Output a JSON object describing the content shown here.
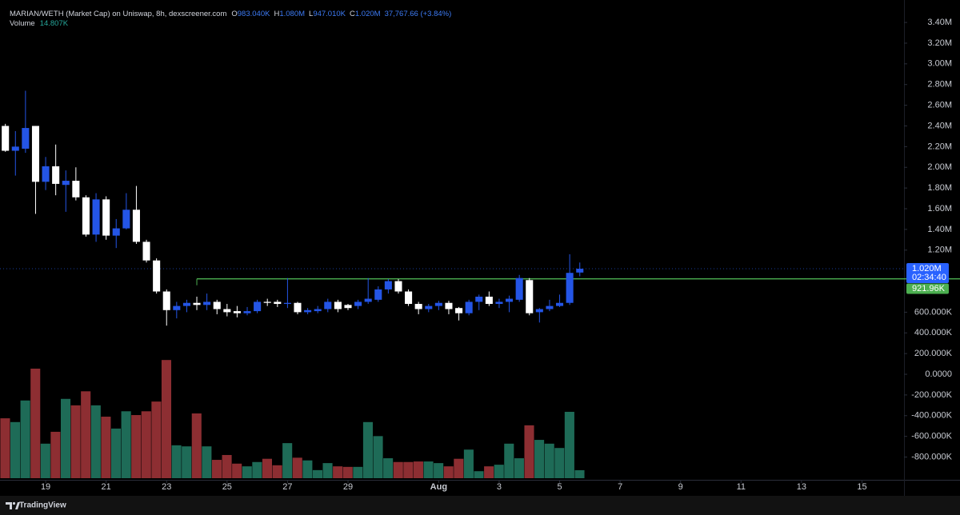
{
  "chart_data": {
    "type": "candlestick",
    "title": "MARIAN/WETH (Market Cap) on Uniswap, 8h, dexscreener.com",
    "ohlc_legend": [
      {
        "key": "O",
        "value": "983.040K"
      },
      {
        "key": "H",
        "value": "1.080M"
      },
      {
        "key": "L",
        "value": "947.010K"
      },
      {
        "key": "C",
        "value": "1.020M"
      }
    ],
    "change_label": "37,767.66 (+3.84%)",
    "volume_label": "Volume",
    "volume_value_label": "14.807K",
    "x": [
      17.667,
      18,
      18.333,
      18.667,
      19,
      19.333,
      19.667,
      20,
      20.333,
      20.667,
      21,
      21.333,
      21.667,
      22,
      22.333,
      22.667,
      23,
      23.333,
      23.667,
      24,
      24.333,
      24.667,
      25,
      25.333,
      25.667,
      26,
      26.333,
      26.667,
      27,
      27.333,
      27.667,
      28,
      28.333,
      28.667,
      29,
      29.333,
      29.667,
      30,
      30.333,
      30.667,
      31,
      31.333,
      31.667,
      32,
      32.333,
      32.667,
      33,
      33.333,
      33.667,
      34,
      34.333,
      34.667,
      35,
      35.333,
      35.667,
      36,
      36.333,
      36.667
    ],
    "open": [
      2400000,
      2160000,
      2180000,
      2400000,
      1860000,
      2010000,
      1830000,
      1870000,
      1710000,
      1350000,
      1690000,
      1340000,
      1410000,
      1590000,
      1280000,
      1100000,
      800000,
      620000,
      660000,
      690000,
      670000,
      700000,
      630000,
      610000,
      590000,
      610000,
      700000,
      700000,
      680000,
      690000,
      600000,
      610000,
      630000,
      700000,
      670000,
      660000,
      700000,
      720000,
      820000,
      900000,
      800000,
      680000,
      630000,
      660000,
      690000,
      640000,
      590000,
      700000,
      750000,
      680000,
      700000,
      720000,
      910000,
      600000,
      630000,
      660000,
      690000,
      983040
    ],
    "high": [
      2420000,
      2350000,
      2740000,
      2400000,
      2100000,
      2220000,
      1970000,
      2000000,
      1730000,
      1750000,
      1720000,
      1500000,
      1750000,
      1820000,
      1300000,
      1120000,
      820000,
      700000,
      720000,
      750000,
      780000,
      720000,
      680000,
      660000,
      650000,
      720000,
      730000,
      720000,
      930000,
      700000,
      640000,
      660000,
      730000,
      720000,
      680000,
      720000,
      930000,
      850000,
      920000,
      920000,
      820000,
      700000,
      680000,
      710000,
      710000,
      650000,
      720000,
      770000,
      800000,
      730000,
      760000,
      960000,
      930000,
      640000,
      720000,
      770000,
      1160000,
      1080000
    ],
    "low": [
      2150000,
      1920000,
      2140000,
      1550000,
      1780000,
      1730000,
      1570000,
      1680000,
      1330000,
      1280000,
      1300000,
      1220000,
      1400000,
      1260000,
      1080000,
      780000,
      470000,
      540000,
      600000,
      620000,
      620000,
      580000,
      560000,
      550000,
      570000,
      590000,
      660000,
      650000,
      640000,
      580000,
      580000,
      590000,
      600000,
      600000,
      620000,
      630000,
      680000,
      700000,
      780000,
      780000,
      660000,
      580000,
      600000,
      620000,
      580000,
      520000,
      570000,
      620000,
      660000,
      640000,
      600000,
      700000,
      570000,
      500000,
      610000,
      650000,
      670000,
      947010
    ],
    "close": [
      2160000,
      2200000,
      2380000,
      1860000,
      2010000,
      1840000,
      1870000,
      1710000,
      1350000,
      1690000,
      1340000,
      1410000,
      1590000,
      1280000,
      1100000,
      800000,
      620000,
      660000,
      690000,
      670000,
      700000,
      630000,
      600000,
      590000,
      610000,
      700000,
      690000,
      680000,
      690000,
      600000,
      620000,
      630000,
      700000,
      630000,
      640000,
      700000,
      730000,
      820000,
      900000,
      800000,
      680000,
      630000,
      660000,
      690000,
      630000,
      590000,
      700000,
      750000,
      680000,
      700000,
      730000,
      930000,
      590000,
      630000,
      660000,
      690000,
      980000,
      1020000
    ],
    "volume": [
      111000,
      104000,
      144000,
      203000,
      64000,
      86000,
      147000,
      135000,
      161000,
      135000,
      114000,
      92000,
      124000,
      117000,
      124000,
      142000,
      219000,
      61000,
      59000,
      120000,
      59000,
      34000,
      43000,
      27000,
      22000,
      30000,
      36000,
      24000,
      65000,
      38000,
      33000,
      15000,
      28000,
      22000,
      21000,
      21000,
      104000,
      78000,
      37000,
      30000,
      30000,
      31000,
      31000,
      28000,
      22000,
      36000,
      53000,
      13000,
      22000,
      25000,
      64000,
      37000,
      98000,
      71000,
      64000,
      56000,
      123000,
      14807
    ],
    "up_color": "#2455e6",
    "down_color": "#ffffff",
    "volume_up_color": "#1e6b57",
    "volume_down_color": "#8d2e32",
    "xlim": [
      17.49,
      47.39
    ],
    "xticks": [
      19,
      21,
      23,
      25,
      27,
      29,
      {
        "value": 32,
        "label": "Aug"
      },
      {
        "value": 34,
        "label": "3"
      },
      {
        "value": 36,
        "label": "5"
      },
      {
        "value": 38,
        "label": "7"
      },
      {
        "value": 40,
        "label": "9"
      },
      {
        "value": 42,
        "label": "11"
      },
      {
        "value": 44,
        "label": "13"
      },
      {
        "value": 46,
        "label": "15"
      }
    ],
    "ylim": [
      -1020000,
      3617000
    ],
    "yticks": [
      {
        "value": 3400000,
        "label": "3.40M"
      },
      {
        "value": 3200000,
        "label": "3.20M"
      },
      {
        "value": 3000000,
        "label": "3.00M"
      },
      {
        "value": 2800000,
        "label": "2.80M"
      },
      {
        "value": 2600000,
        "label": "2.60M"
      },
      {
        "value": 2400000,
        "label": "2.40M"
      },
      {
        "value": 2200000,
        "label": "2.20M"
      },
      {
        "value": 2000000,
        "label": "2.00M"
      },
      {
        "value": 1800000,
        "label": "1.80M"
      },
      {
        "value": 1600000,
        "label": "1.60M"
      },
      {
        "value": 1400000,
        "label": "1.40M"
      },
      {
        "value": 1200000,
        "label": "1.20M"
      },
      {
        "value": 600000,
        "label": "600.000K"
      },
      {
        "value": 400000,
        "label": "400.000K"
      },
      {
        "value": 200000,
        "label": "200.000K"
      },
      {
        "value": 0,
        "label": "0.0000"
      },
      {
        "value": -200000,
        "label": "-200.000K"
      },
      {
        "value": -400000,
        "label": "-400.000K"
      },
      {
        "value": -600000,
        "label": "-600.000K"
      },
      {
        "value": -800000,
        "label": "-800.000K"
      }
    ],
    "volume_ylim": [
      0,
      400000
    ],
    "price_line": {
      "value": 1020000,
      "label": "1.020M",
      "countdown": "02:34:40",
      "color": "#2962ff"
    },
    "hline": {
      "value": 921960,
      "label": "921.96K",
      "color": "#4caf50",
      "x_start": 24.0
    },
    "footer": "TradingView"
  }
}
